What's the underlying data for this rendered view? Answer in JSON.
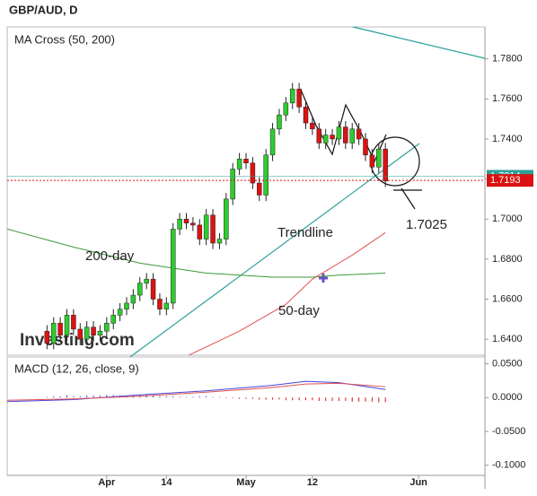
{
  "chart_data": [
    {
      "type": "candlestick",
      "title": "GBP/AUD, D",
      "subtitle": "MA Cross (50, 200)",
      "up_color": "#2ecc2e",
      "down_color": "#dd1111",
      "xlim": [
        0,
        72
      ],
      "ylim": [
        1.632,
        1.796
      ],
      "xticks": [
        {
          "value": 15,
          "label": "Apr"
        },
        {
          "value": 24,
          "label": "14"
        },
        {
          "value": 36,
          "label": "May"
        },
        {
          "value": 46,
          "label": "12"
        },
        {
          "value": 62,
          "label": "Jun"
        }
      ],
      "yticks": [
        {
          "value": 1.64,
          "label": "1.6400"
        },
        {
          "value": 1.66,
          "label": "1.6600"
        },
        {
          "value": 1.68,
          "label": "1.6800"
        },
        {
          "value": 1.7,
          "label": "1.7000"
        },
        {
          "value": 1.72,
          "label": "1.7200"
        },
        {
          "value": 1.74,
          "label": "1.7400"
        },
        {
          "value": 1.76,
          "label": "1.7600"
        },
        {
          "value": 1.78,
          "label": "1.7800"
        }
      ],
      "x": [
        6,
        7,
        8,
        9,
        10,
        11,
        12,
        13,
        14,
        15,
        16,
        17,
        18,
        19,
        20,
        21,
        22,
        23,
        24,
        25,
        26,
        27,
        28,
        29,
        30,
        31,
        32,
        33,
        34,
        35,
        36,
        37,
        38,
        39,
        40,
        41,
        42,
        43,
        44,
        45,
        46,
        47,
        48,
        49,
        50,
        51,
        52,
        53,
        54,
        55,
        56,
        57
      ],
      "open": [
        1.644,
        1.638,
        1.648,
        1.642,
        1.652,
        1.645,
        1.64,
        1.646,
        1.642,
        1.644,
        1.648,
        1.652,
        1.655,
        1.658,
        1.662,
        1.668,
        1.67,
        1.66,
        1.655,
        1.658,
        1.695,
        1.7,
        1.698,
        1.697,
        1.69,
        1.702,
        1.688,
        1.69,
        1.71,
        1.725,
        1.73,
        1.728,
        1.718,
        1.712,
        1.732,
        1.745,
        1.752,
        1.758,
        1.765,
        1.756,
        1.748,
        1.745,
        1.738,
        1.742,
        1.74,
        1.746,
        1.738,
        1.745,
        1.74,
        1.732,
        1.726,
        1.735
      ],
      "high": [
        1.647,
        1.651,
        1.651,
        1.655,
        1.655,
        1.648,
        1.649,
        1.649,
        1.647,
        1.651,
        1.655,
        1.658,
        1.661,
        1.665,
        1.671,
        1.673,
        1.673,
        1.663,
        1.661,
        1.698,
        1.703,
        1.703,
        1.701,
        1.7,
        1.705,
        1.705,
        1.693,
        1.713,
        1.728,
        1.733,
        1.733,
        1.731,
        1.721,
        1.735,
        1.748,
        1.755,
        1.761,
        1.768,
        1.768,
        1.759,
        1.751,
        1.748,
        1.745,
        1.745,
        1.749,
        1.749,
        1.748,
        1.748,
        1.743,
        1.735,
        1.738,
        1.738
      ],
      "low": [
        1.635,
        1.635,
        1.639,
        1.639,
        1.642,
        1.637,
        1.637,
        1.639,
        1.639,
        1.641,
        1.645,
        1.649,
        1.652,
        1.655,
        1.659,
        1.665,
        1.657,
        1.652,
        1.652,
        1.655,
        1.692,
        1.695,
        1.694,
        1.687,
        1.687,
        1.685,
        1.685,
        1.687,
        1.707,
        1.722,
        1.725,
        1.715,
        1.709,
        1.709,
        1.729,
        1.742,
        1.749,
        1.755,
        1.753,
        1.745,
        1.742,
        1.735,
        1.735,
        1.737,
        1.737,
        1.735,
        1.735,
        1.737,
        1.729,
        1.723,
        1.723,
        1.716
      ],
      "close": [
        1.638,
        1.648,
        1.642,
        1.652,
        1.645,
        1.64,
        1.646,
        1.642,
        1.644,
        1.648,
        1.652,
        1.655,
        1.658,
        1.662,
        1.668,
        1.67,
        1.66,
        1.655,
        1.658,
        1.695,
        1.7,
        1.698,
        1.697,
        1.69,
        1.702,
        1.688,
        1.69,
        1.71,
        1.725,
        1.73,
        1.728,
        1.718,
        1.712,
        1.732,
        1.745,
        1.752,
        1.758,
        1.765,
        1.756,
        1.748,
        1.745,
        1.738,
        1.742,
        1.74,
        1.746,
        1.738,
        1.745,
        1.74,
        1.732,
        1.726,
        1.735,
        1.719
      ],
      "series": [
        {
          "name": "200-day",
          "color": "#3a9a3a",
          "x": [
            0,
            10,
            20,
            30,
            40,
            46,
            50,
            57
          ],
          "values": [
            1.695,
            1.686,
            1.678,
            1.673,
            1.671,
            1.671,
            1.672,
            1.673
          ]
        },
        {
          "name": "50-day",
          "color": "#e05050",
          "x": [
            27,
            35,
            42,
            46,
            52,
            57
          ],
          "values": [
            1.6314,
            1.644,
            1.6574,
            1.67,
            1.682,
            1.6932
          ]
        }
      ],
      "price_labels": [
        {
          "value": 1.7214,
          "label": "1.7214",
          "color": "#2aa198"
        },
        {
          "value": 1.7193,
          "label": "1.7193",
          "color": "#dd1111"
        }
      ],
      "annotations": [
        "Trendline",
        "1.7025"
      ],
      "logo": "Investing.com"
    },
    {
      "type": "macd",
      "title": "MACD (12, 26, close, 9)",
      "xlim": [
        0,
        72
      ],
      "ylim": [
        -0.115,
        0.06
      ],
      "yticks": [
        {
          "value": 0.05,
          "label": "0.0500"
        },
        {
          "value": 0,
          "label": "0.0000"
        },
        {
          "value": -0.05,
          "label": "-0.0500"
        },
        {
          "value": -0.1,
          "label": "-0.1000"
        }
      ],
      "series": [
        {
          "color": "#4444dd",
          "x": [
            0,
            10,
            20,
            30,
            40,
            45,
            50,
            57
          ],
          "values": [
            -0.006,
            -0.003,
            0.004,
            0.01,
            0.018,
            0.024,
            0.022,
            0.012
          ]
        },
        {
          "color": "#e05050",
          "x": [
            0,
            10,
            20,
            30,
            40,
            45,
            50,
            57
          ],
          "values": [
            -0.004,
            -0.002,
            0.002,
            0.008,
            0.015,
            0.02,
            0.021,
            0.016
          ]
        }
      ],
      "histogram": {
        "x": [
          6,
          7,
          8,
          9,
          10,
          11,
          12,
          13,
          14,
          15,
          16,
          17,
          18,
          19,
          20,
          21,
          22,
          23,
          24,
          25,
          26,
          27,
          28,
          29,
          30,
          31,
          32,
          33,
          34,
          35,
          36,
          37,
          38,
          39,
          40,
          41,
          42,
          43,
          44,
          45,
          46,
          47,
          48,
          49,
          50,
          51,
          52,
          53,
          54,
          55,
          56,
          57
        ],
        "values": [
          0.001,
          0.002,
          0.002,
          0.003,
          0.002,
          0.002,
          0.003,
          0.003,
          0.003,
          0.004,
          0.004,
          0.003,
          0.003,
          0.003,
          0.004,
          0.004,
          0.003,
          0.002,
          0.002,
          0.002,
          0.001,
          0.001,
          0.001,
          0.002,
          0.002,
          0.001,
          0.001,
          -0.001,
          -0.001,
          -0.002,
          -0.002,
          -0.002,
          -0.003,
          -0.003,
          -0.003,
          -0.003,
          -0.004,
          -0.004,
          -0.004,
          -0.004,
          -0.004,
          -0.005,
          -0.005,
          -0.005,
          -0.005,
          -0.005,
          -0.006,
          -0.006,
          -0.006,
          -0.006,
          -0.007,
          -0.007
        ]
      }
    }
  ]
}
